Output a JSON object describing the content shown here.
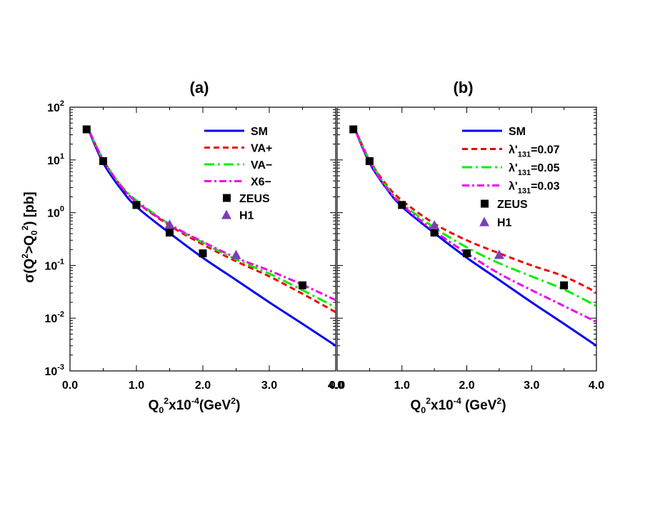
{
  "figure": {
    "y_label_main": "σ(Q",
    "y_label_sup1": "2",
    "y_label_mid": ">Q",
    "y_label_sub": "0",
    "y_label_sup2": "2",
    "y_label_end": ") [pb]"
  },
  "chart_data": [
    {
      "type": "line",
      "title": "(a)",
      "xlabel": "Q0^2x10^-4(GeV^2)",
      "ylabel": "σ(Q^2>Q0^2) [pb]",
      "x_scale": "linear",
      "y_scale": "log",
      "xlim": [
        0.0,
        4.0
      ],
      "ylim": [
        0.001,
        100
      ],
      "x_ticks": [
        "0.0",
        "1.0",
        "2.0",
        "3.0",
        "4.0"
      ],
      "y_ticks": [
        {
          "base": "10",
          "exp": "-3",
          "value": 0.001
        },
        {
          "base": "10",
          "exp": "-2",
          "value": 0.01
        },
        {
          "base": "10",
          "exp": "-1",
          "value": 0.1
        },
        {
          "base": "10",
          "exp": "0",
          "value": 1
        },
        {
          "base": "10",
          "exp": "1",
          "value": 10
        },
        {
          "base": "10",
          "exp": "2",
          "value": 100
        }
      ],
      "grid": false,
      "legend_position": "top-right",
      "series": [
        {
          "name": "SM",
          "style": "solid",
          "color": "#0000ee",
          "x": [
            0.3,
            0.5,
            0.75,
            1.0,
            1.5,
            2.0,
            2.5,
            3.0,
            3.5,
            4.0
          ],
          "y": [
            32,
            8.8,
            3.0,
            1.3,
            0.41,
            0.14,
            0.053,
            0.02,
            0.0078,
            0.003
          ]
        },
        {
          "name": "VA+",
          "style": "dashed",
          "color": "#ee0000",
          "x": [
            0.3,
            0.5,
            0.75,
            1.0,
            1.5,
            2.0,
            2.5,
            3.0,
            3.5,
            4.0
          ],
          "y": [
            33,
            10,
            3.4,
            1.6,
            0.57,
            0.25,
            0.12,
            0.062,
            0.029,
            0.013
          ]
        },
        {
          "name": "VA−",
          "style": "longdash-dot",
          "color": "#00ee00",
          "x": [
            0.3,
            0.5,
            0.75,
            1.0,
            1.5,
            2.0,
            2.5,
            3.0,
            3.5,
            4.0
          ],
          "y": [
            33,
            10,
            3.5,
            1.7,
            0.6,
            0.27,
            0.13,
            0.07,
            0.034,
            0.016
          ]
        },
        {
          "name": "X6−",
          "style": "dash-dot",
          "color": "#ee00ee",
          "x": [
            0.3,
            0.5,
            0.75,
            1.0,
            1.5,
            2.0,
            2.5,
            3.0,
            3.5,
            4.0
          ],
          "y": [
            33,
            10,
            3.4,
            1.6,
            0.6,
            0.28,
            0.14,
            0.08,
            0.043,
            0.022
          ]
        },
        {
          "name": "ZEUS",
          "marker": "square",
          "color": "#000000",
          "x": [
            0.25,
            0.5,
            1.0,
            1.5,
            2.0,
            3.5
          ],
          "y": [
            38,
            9.5,
            1.4,
            0.42,
            0.17,
            0.042
          ]
        },
        {
          "name": "H1",
          "marker": "triangle",
          "color": "#7b3fb8",
          "x": [
            1.5,
            2.5
          ],
          "y": [
            0.6,
            0.16
          ]
        }
      ]
    },
    {
      "type": "line",
      "title": "(b)",
      "xlabel": "Q0^2x10^-4 (GeV^2)",
      "ylabel": "",
      "x_scale": "linear",
      "y_scale": "log",
      "xlim": [
        0.0,
        4.0
      ],
      "ylim": [
        0.001,
        100
      ],
      "x_ticks": [
        "0.0",
        "1.0",
        "2.0",
        "3.0",
        "4.0"
      ],
      "grid": false,
      "legend_position": "top-right",
      "series": [
        {
          "name": "SM",
          "style": "solid",
          "color": "#0000ee",
          "x": [
            0.3,
            0.5,
            0.75,
            1.0,
            1.5,
            2.0,
            2.5,
            3.0,
            3.5,
            4.0
          ],
          "y": [
            32,
            8.8,
            3.0,
            1.3,
            0.41,
            0.14,
            0.053,
            0.02,
            0.0078,
            0.003
          ]
        },
        {
          "name": "λ'131=0.07",
          "style": "dashed",
          "color": "#ee0000",
          "x": [
            0.3,
            0.5,
            0.75,
            1.0,
            1.5,
            2.0,
            2.5,
            3.0,
            3.5,
            4.0
          ],
          "y": [
            33,
            10,
            3.5,
            1.7,
            0.62,
            0.3,
            0.17,
            0.1,
            0.062,
            0.031
          ]
        },
        {
          "name": "λ'131=0.05",
          "style": "longdash-dot",
          "color": "#00ee00",
          "x": [
            0.3,
            0.5,
            0.75,
            1.0,
            1.5,
            2.0,
            2.5,
            3.0,
            3.5,
            4.0
          ],
          "y": [
            33,
            9.8,
            3.3,
            1.5,
            0.52,
            0.22,
            0.11,
            0.062,
            0.035,
            0.017
          ]
        },
        {
          "name": "λ'131=0.03",
          "style": "dash-dot",
          "color": "#ee00ee",
          "x": [
            0.3,
            0.5,
            0.75,
            1.0,
            1.5,
            2.0,
            2.5,
            3.0,
            3.5,
            4.0
          ],
          "y": [
            32,
            9.3,
            3.1,
            1.4,
            0.45,
            0.17,
            0.07,
            0.034,
            0.017,
            0.0085
          ]
        },
        {
          "name": "ZEUS",
          "marker": "square",
          "color": "#000000",
          "x": [
            0.25,
            0.5,
            1.0,
            1.5,
            2.0,
            3.5
          ],
          "y": [
            38,
            9.5,
            1.4,
            0.42,
            0.17,
            0.042
          ]
        },
        {
          "name": "H1",
          "marker": "triangle",
          "color": "#7b3fb8",
          "x": [
            1.5,
            2.5
          ],
          "y": [
            0.58,
            0.16
          ]
        }
      ]
    }
  ]
}
